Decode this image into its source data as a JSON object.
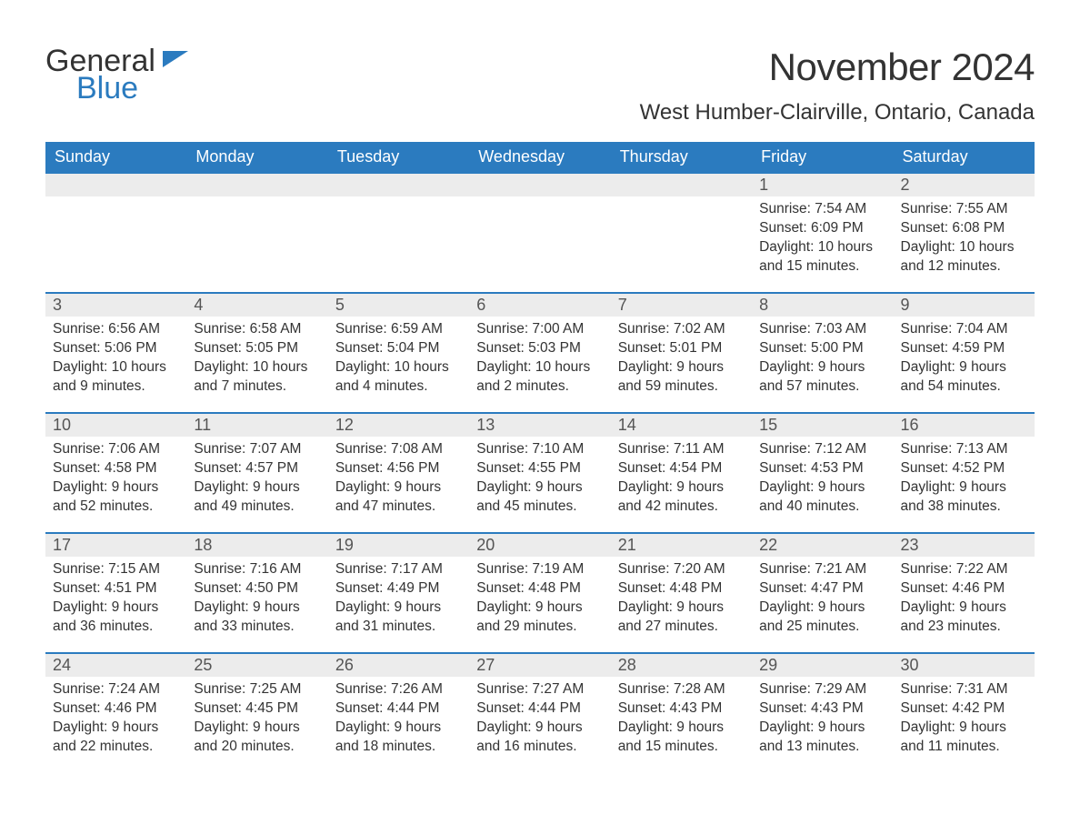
{
  "logo": {
    "part1": "General",
    "part2": "Blue"
  },
  "title": "November 2024",
  "location": "West Humber-Clairville, Ontario, Canada",
  "colors": {
    "header_bg": "#2b7bbf",
    "header_text": "#ffffff",
    "daynum_bg": "#ececec",
    "row_border": "#2b7bbf",
    "body_text": "#333333",
    "logo_blue": "#2b7bbf"
  },
  "weekdays": [
    "Sunday",
    "Monday",
    "Tuesday",
    "Wednesday",
    "Thursday",
    "Friday",
    "Saturday"
  ],
  "weeks": [
    [
      null,
      null,
      null,
      null,
      null,
      {
        "n": "1",
        "sunrise": "7:54 AM",
        "sunset": "6:09 PM",
        "daylight": "10 hours and 15 minutes."
      },
      {
        "n": "2",
        "sunrise": "7:55 AM",
        "sunset": "6:08 PM",
        "daylight": "10 hours and 12 minutes."
      }
    ],
    [
      {
        "n": "3",
        "sunrise": "6:56 AM",
        "sunset": "5:06 PM",
        "daylight": "10 hours and 9 minutes."
      },
      {
        "n": "4",
        "sunrise": "6:58 AM",
        "sunset": "5:05 PM",
        "daylight": "10 hours and 7 minutes."
      },
      {
        "n": "5",
        "sunrise": "6:59 AM",
        "sunset": "5:04 PM",
        "daylight": "10 hours and 4 minutes."
      },
      {
        "n": "6",
        "sunrise": "7:00 AM",
        "sunset": "5:03 PM",
        "daylight": "10 hours and 2 minutes."
      },
      {
        "n": "7",
        "sunrise": "7:02 AM",
        "sunset": "5:01 PM",
        "daylight": "9 hours and 59 minutes."
      },
      {
        "n": "8",
        "sunrise": "7:03 AM",
        "sunset": "5:00 PM",
        "daylight": "9 hours and 57 minutes."
      },
      {
        "n": "9",
        "sunrise": "7:04 AM",
        "sunset": "4:59 PM",
        "daylight": "9 hours and 54 minutes."
      }
    ],
    [
      {
        "n": "10",
        "sunrise": "7:06 AM",
        "sunset": "4:58 PM",
        "daylight": "9 hours and 52 minutes."
      },
      {
        "n": "11",
        "sunrise": "7:07 AM",
        "sunset": "4:57 PM",
        "daylight": "9 hours and 49 minutes."
      },
      {
        "n": "12",
        "sunrise": "7:08 AM",
        "sunset": "4:56 PM",
        "daylight": "9 hours and 47 minutes."
      },
      {
        "n": "13",
        "sunrise": "7:10 AM",
        "sunset": "4:55 PM",
        "daylight": "9 hours and 45 minutes."
      },
      {
        "n": "14",
        "sunrise": "7:11 AM",
        "sunset": "4:54 PM",
        "daylight": "9 hours and 42 minutes."
      },
      {
        "n": "15",
        "sunrise": "7:12 AM",
        "sunset": "4:53 PM",
        "daylight": "9 hours and 40 minutes."
      },
      {
        "n": "16",
        "sunrise": "7:13 AM",
        "sunset": "4:52 PM",
        "daylight": "9 hours and 38 minutes."
      }
    ],
    [
      {
        "n": "17",
        "sunrise": "7:15 AM",
        "sunset": "4:51 PM",
        "daylight": "9 hours and 36 minutes."
      },
      {
        "n": "18",
        "sunrise": "7:16 AM",
        "sunset": "4:50 PM",
        "daylight": "9 hours and 33 minutes."
      },
      {
        "n": "19",
        "sunrise": "7:17 AM",
        "sunset": "4:49 PM",
        "daylight": "9 hours and 31 minutes."
      },
      {
        "n": "20",
        "sunrise": "7:19 AM",
        "sunset": "4:48 PM",
        "daylight": "9 hours and 29 minutes."
      },
      {
        "n": "21",
        "sunrise": "7:20 AM",
        "sunset": "4:48 PM",
        "daylight": "9 hours and 27 minutes."
      },
      {
        "n": "22",
        "sunrise": "7:21 AM",
        "sunset": "4:47 PM",
        "daylight": "9 hours and 25 minutes."
      },
      {
        "n": "23",
        "sunrise": "7:22 AM",
        "sunset": "4:46 PM",
        "daylight": "9 hours and 23 minutes."
      }
    ],
    [
      {
        "n": "24",
        "sunrise": "7:24 AM",
        "sunset": "4:46 PM",
        "daylight": "9 hours and 22 minutes."
      },
      {
        "n": "25",
        "sunrise": "7:25 AM",
        "sunset": "4:45 PM",
        "daylight": "9 hours and 20 minutes."
      },
      {
        "n": "26",
        "sunrise": "7:26 AM",
        "sunset": "4:44 PM",
        "daylight": "9 hours and 18 minutes."
      },
      {
        "n": "27",
        "sunrise": "7:27 AM",
        "sunset": "4:44 PM",
        "daylight": "9 hours and 16 minutes."
      },
      {
        "n": "28",
        "sunrise": "7:28 AM",
        "sunset": "4:43 PM",
        "daylight": "9 hours and 15 minutes."
      },
      {
        "n": "29",
        "sunrise": "7:29 AM",
        "sunset": "4:43 PM",
        "daylight": "9 hours and 13 minutes."
      },
      {
        "n": "30",
        "sunrise": "7:31 AM",
        "sunset": "4:42 PM",
        "daylight": "9 hours and 11 minutes."
      }
    ]
  ],
  "labels": {
    "sunrise": "Sunrise: ",
    "sunset": "Sunset: ",
    "daylight": "Daylight: "
  }
}
